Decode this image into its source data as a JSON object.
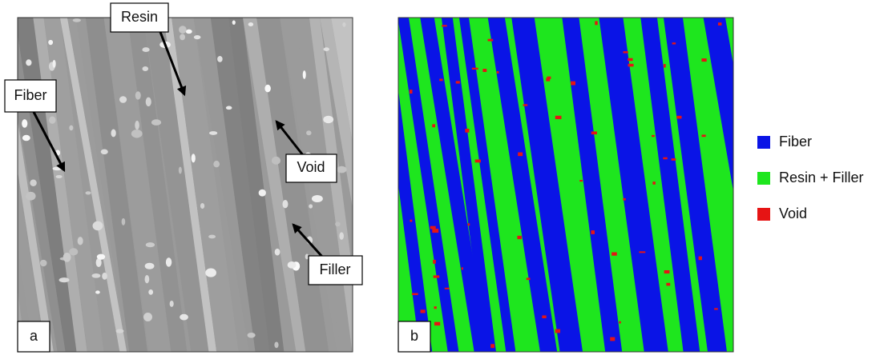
{
  "panels": [
    {
      "label": "a",
      "annotations": [
        "Resin",
        "Fiber",
        "Void",
        "Filler"
      ]
    },
    {
      "label": "b"
    }
  ],
  "legend": [
    {
      "name": "Fiber",
      "color": "#0a14e6"
    },
    {
      "name": "Resin + Filler",
      "color": "#1ee61e"
    },
    {
      "name": "Void",
      "color": "#e61414"
    }
  ]
}
